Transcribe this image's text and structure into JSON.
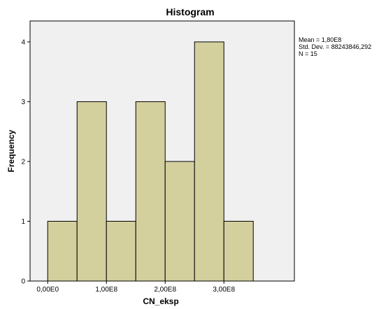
{
  "chart_data": {
    "type": "bar",
    "title": "Histogram",
    "xlabel": "CN_eksp",
    "ylabel": "Frequency",
    "bin_edges": [
      0,
      50000000,
      100000000,
      150000000,
      200000000,
      250000000,
      300000000,
      350000000
    ],
    "values": [
      1,
      3,
      1,
      3,
      2,
      4,
      1
    ],
    "xlim": [
      -30000000,
      420000000
    ],
    "ylim": [
      0,
      4.35
    ],
    "x_ticks": [
      {
        "value": 0,
        "label": "0,00E0"
      },
      {
        "value": 100000000,
        "label": "1,00E8"
      },
      {
        "value": 200000000,
        "label": "2,00E8"
      },
      {
        "value": 300000000,
        "label": "3,00E8"
      }
    ],
    "y_ticks": [
      {
        "value": 0,
        "label": "0"
      },
      {
        "value": 1,
        "label": "1"
      },
      {
        "value": 2,
        "label": "2"
      },
      {
        "value": 3,
        "label": "3"
      },
      {
        "value": 4,
        "label": "4"
      }
    ],
    "stats": {
      "mean": "Mean = 1,80E8",
      "std_dev": "Std. Dev. = 88243846,292",
      "n": "N = 15"
    },
    "colors": {
      "bar_fill": "#d4d09e",
      "bar_stroke": "#000000",
      "plot_background": "#f0f0f0"
    },
    "grid": false,
    "legend": "none"
  }
}
